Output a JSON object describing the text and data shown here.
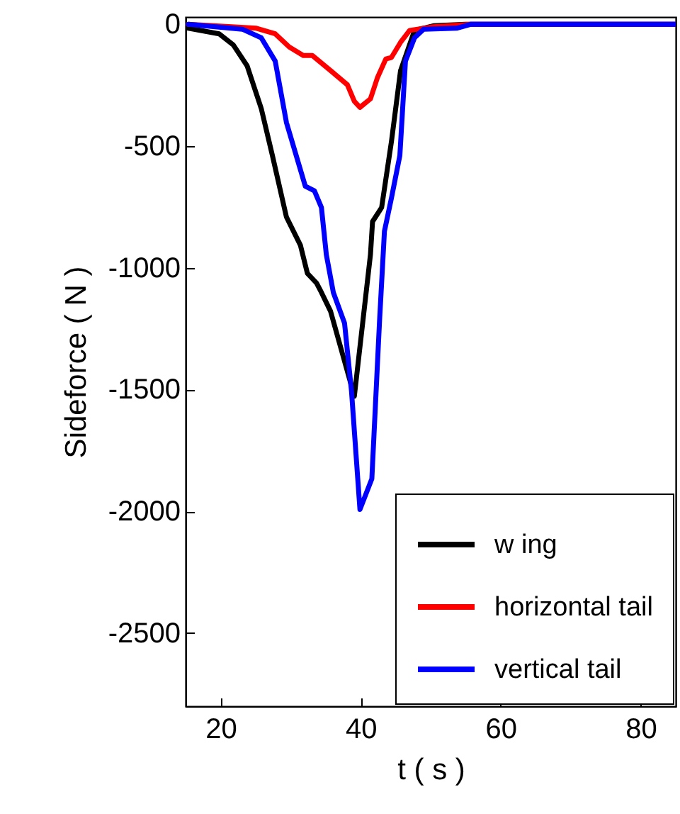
{
  "chart_data": {
    "type": "line",
    "xlabel": "t ( s )",
    "ylabel": "Sideforce ( N )",
    "xlim": [
      15,
      85
    ],
    "ylim": [
      -2800,
      30
    ],
    "xticks": [
      20,
      40,
      60,
      80
    ],
    "yticks": [
      -2500,
      -2000,
      -1500,
      -1000,
      -500,
      0
    ],
    "grid": false,
    "legend": "bottom right",
    "line_style": "solid",
    "series": [
      {
        "name": "w ing",
        "color": "#000000",
        "x": [
          15.4,
          19.8,
          21.8,
          23.8,
          25.8,
          27.4,
          29.4,
          31.4,
          32.4,
          33.7,
          34.4,
          35.7,
          39.1,
          41.4,
          41.7,
          43.0,
          44.4,
          45.7,
          47.7,
          50.4,
          55,
          85
        ],
        "values": [
          -16,
          -39,
          -84,
          -171,
          -345,
          -539,
          -791,
          -907,
          -1023,
          -1062,
          -1101,
          -1178,
          -1527,
          -946,
          -810,
          -752,
          -481,
          -190,
          -25,
          -6,
          0,
          0
        ]
      },
      {
        "name": "horizontal tail",
        "color": "#ff0000",
        "x": [
          15.4,
          25.1,
          27.8,
          29.8,
          31.8,
          33.1,
          35.7,
          38.1,
          39.1,
          39.9,
          41.4,
          42.4,
          43.6,
          44.4,
          45.7,
          47.0,
          50.4,
          55.7,
          85
        ],
        "values": [
          0,
          -16,
          -39,
          -93,
          -128,
          -128,
          -190,
          -248,
          -316,
          -341,
          -306,
          -219,
          -142,
          -136,
          -74,
          -25,
          -10,
          0,
          0
        ]
      },
      {
        "name": "vertical tail",
        "color": "#0000ff",
        "x": [
          15.4,
          23.1,
          25.8,
          27.8,
          29.4,
          32.1,
          33.4,
          34.4,
          35.1,
          36.1,
          37.7,
          38.7,
          39.9,
          41.6,
          42.7,
          43.4,
          44.4,
          45.6,
          46.4,
          47.7,
          49.0,
          53.7,
          55.7,
          85
        ],
        "values": [
          0,
          -20,
          -55,
          -151,
          -403,
          -665,
          -684,
          -752,
          -946,
          -1101,
          -1227,
          -1508,
          -1992,
          -1866,
          -1217,
          -849,
          -713,
          -539,
          -151,
          -55,
          -20,
          -16,
          0,
          0
        ]
      }
    ]
  }
}
